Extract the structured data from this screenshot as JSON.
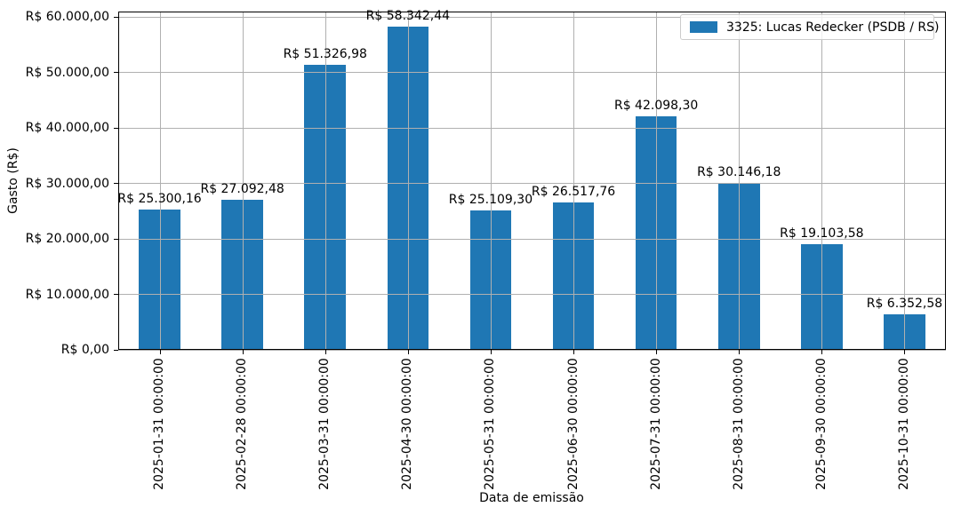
{
  "chart_data": {
    "type": "bar",
    "title": "",
    "xlabel": "Data de emissão",
    "ylabel": "Gasto (R$)",
    "categories": [
      "2025-01-31 00:00:00",
      "2025-02-28 00:00:00",
      "2025-03-31 00:00:00",
      "2025-04-30 00:00:00",
      "2025-05-31 00:00:00",
      "2025-06-30 00:00:00",
      "2025-07-31 00:00:00",
      "2025-08-31 00:00:00",
      "2025-09-30 00:00:00",
      "2025-10-31 00:00:00"
    ],
    "series": [
      {
        "name": "3325: Lucas Redecker (PSDB / RS)",
        "color": "#1f77b4",
        "values": [
          25300.16,
          27092.48,
          51326.98,
          58342.44,
          25109.3,
          26517.76,
          42098.3,
          30146.18,
          19103.58,
          6352.58
        ],
        "value_labels": [
          "R$ 25.300,16",
          "R$ 27.092,48",
          "R$ 51.326,98",
          "R$ 58.342,44",
          "R$ 25.109,30",
          "R$ 26.517,76",
          "R$ 42.098,30",
          "R$ 30.146,18",
          "R$ 19.103,58",
          "R$ 6.352,58"
        ]
      }
    ],
    "y_ticks": {
      "values": [
        0,
        10000,
        20000,
        30000,
        40000,
        50000,
        60000
      ],
      "labels": [
        "R$ 0,00",
        "R$ 10.000,00",
        "R$ 20.000,00",
        "R$ 30.000,00",
        "R$ 40.000,00",
        "R$ 50.000,00",
        "R$ 60.000,00"
      ]
    },
    "ylim": [
      0,
      61000
    ],
    "grid": true,
    "grid_color": "#b0b0b0",
    "bar_width_ratio": 0.5,
    "legend": {
      "position": "upper right",
      "entries": [
        {
          "label": "3325: Lucas Redecker (PSDB / RS)",
          "color": "#1f77b4"
        }
      ]
    }
  }
}
